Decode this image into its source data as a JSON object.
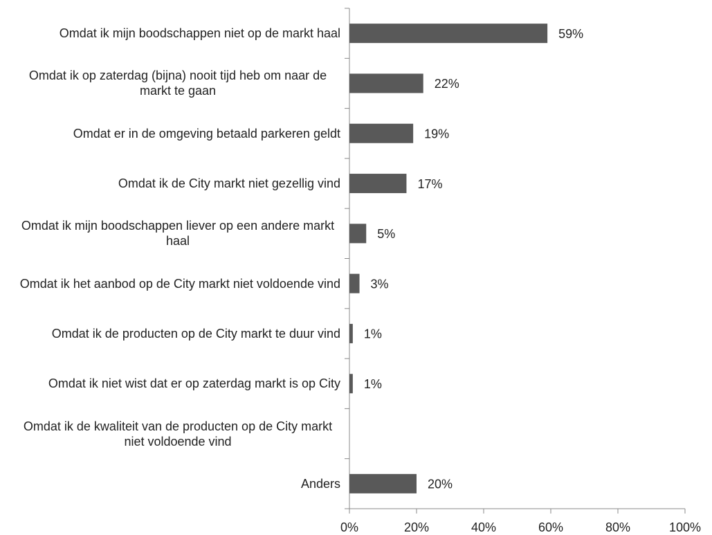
{
  "chart_data": {
    "type": "hbar",
    "categories": [
      "Omdat ik mijn boodschappen niet op de markt haal",
      "Omdat ik op zaterdag (bijna) nooit tijd heb om naar de markt te gaan",
      "Omdat er in de omgeving betaald parkeren geldt",
      "Omdat ik de City markt niet gezellig vind",
      "Omdat ik mijn boodschappen liever op een andere markt haal",
      "Omdat ik het aanbod op de City markt niet voldoende vind",
      "Omdat ik de producten op de City markt te duur vind",
      "Omdat ik niet wist dat er op zaterdag markt is op City",
      "Omdat ik de kwaliteit van de producten op de City markt niet voldoende vind",
      "Anders"
    ],
    "values": [
      59,
      22,
      19,
      17,
      5,
      3,
      1,
      1,
      0,
      20
    ],
    "value_labels": [
      "59%",
      "22%",
      "19%",
      "17%",
      "5%",
      "3%",
      "1%",
      "1%",
      null,
      "20%"
    ],
    "color": "#595959",
    "xlim": [
      0,
      100
    ],
    "xticks": [
      {
        "value": 0,
        "label": "0%"
      },
      {
        "value": 20,
        "label": "20%"
      },
      {
        "value": 40,
        "label": "40%"
      },
      {
        "value": 60,
        "label": "60%"
      },
      {
        "value": 80,
        "label": "80%"
      },
      {
        "value": 100,
        "label": "100%"
      }
    ]
  }
}
